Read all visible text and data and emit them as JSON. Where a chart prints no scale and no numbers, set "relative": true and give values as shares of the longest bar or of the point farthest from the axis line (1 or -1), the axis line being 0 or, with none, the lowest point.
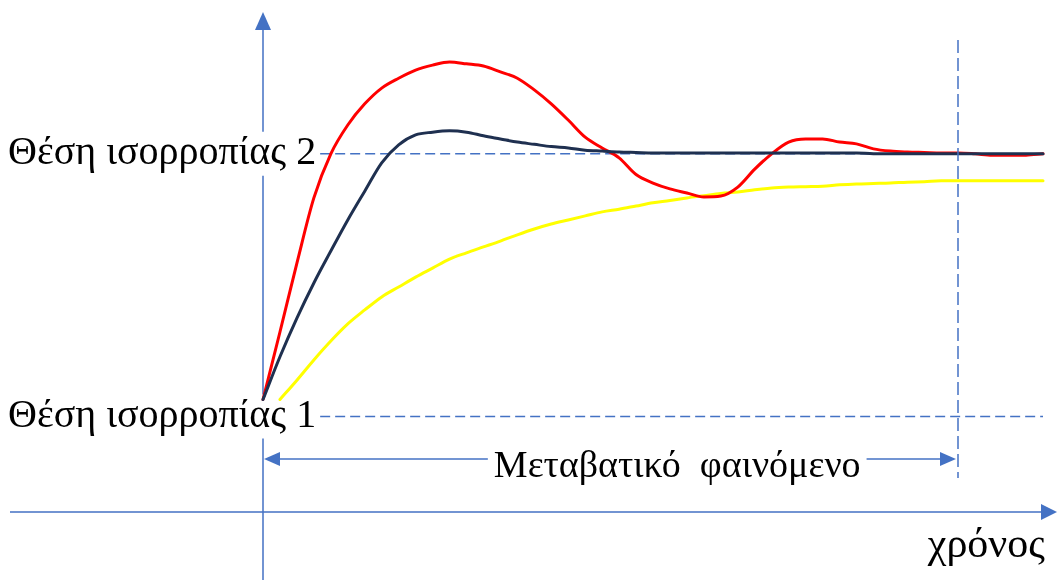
{
  "chart_data": {
    "type": "line",
    "relative": true,
    "xlabel": "χρόνος",
    "categories": [
      null,
      null,
      null,
      null,
      null,
      null,
      null,
      null,
      null,
      null,
      null,
      null,
      null,
      null,
      null,
      null,
      null,
      null,
      null,
      null,
      null,
      null,
      null,
      null,
      null,
      null,
      null,
      null,
      null,
      null,
      null,
      null,
      null,
      null,
      null,
      null,
      null,
      null,
      null,
      null,
      null,
      null,
      null,
      null,
      null,
      null,
      null
    ],
    "series": [
      {
        "color": "#1f3050",
        "values": [
          0.25,
          0.345,
          0.431,
          0.509,
          0.58,
          0.649,
          0.713,
          0.776,
          0.816,
          0.838,
          0.844,
          0.847,
          0.844,
          0.836,
          0.829,
          0.822,
          0.817,
          0.812,
          0.809,
          0.804,
          0.802,
          0.8,
          0.799,
          0.798,
          0.798,
          0.798,
          0.798,
          0.798,
          0.798,
          0.798,
          0.798,
          0.798,
          0.798,
          0.798,
          0.798,
          0.798,
          0.796,
          0.796,
          0.796,
          0.796,
          0.796,
          0.796,
          0.796,
          0.796,
          0.796,
          0.796,
          0.796
        ]
      },
      {
        "color": "#ff0000",
        "values": [
          0.25,
          0.4,
          0.553,
          0.698,
          0.796,
          0.86,
          0.907,
          0.942,
          0.964,
          0.982,
          0.993,
          1.0,
          0.996,
          0.991,
          0.978,
          0.964,
          0.938,
          0.907,
          0.871,
          0.833,
          0.809,
          0.787,
          0.75,
          0.731,
          0.718,
          0.709,
          0.7,
          0.702,
          0.722,
          0.762,
          0.796,
          0.822,
          0.829,
          0.829,
          0.822,
          0.818,
          0.807,
          0.802,
          0.8,
          0.799,
          0.798,
          0.798,
          0.796,
          0.793,
          0.793,
          0.793,
          0.796
        ]
      },
      {
        "color": "#ffff00",
        "values": [
          null,
          0.25,
          0.293,
          0.338,
          0.38,
          0.418,
          0.449,
          0.478,
          0.5,
          0.522,
          0.542,
          0.562,
          0.576,
          0.589,
          0.602,
          0.616,
          0.629,
          0.64,
          0.649,
          0.658,
          0.667,
          0.673,
          0.68,
          0.687,
          0.692,
          0.698,
          0.703,
          0.708,
          0.711,
          0.716,
          0.72,
          0.722,
          0.723,
          0.724,
          0.727,
          0.729,
          0.73,
          0.731,
          0.733,
          0.734,
          0.736,
          0.736,
          0.736,
          0.736,
          0.736,
          0.736,
          0.736
        ]
      }
    ],
    "ref_lines": [
      {
        "axis": "y",
        "value": 0.796,
        "label": "Θέση ισορροπίας 2",
        "color": "#4472c4",
        "line_style": "dashed"
      },
      {
        "axis": "y",
        "value": 0.212,
        "label": "Θέση ισορροπίας 1",
        "color": "#4472c4",
        "line_style": "dashed"
      }
    ],
    "annotations": [
      "Μεταβατικό  φαινόμενο"
    ]
  }
}
